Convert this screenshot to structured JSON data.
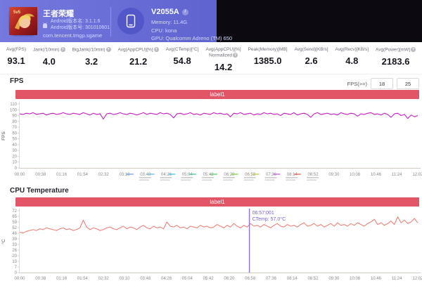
{
  "header": {
    "game": {
      "title": "王者荣耀",
      "version_name": "Android版本名: 3.1.1.6",
      "version_code": "Android版本号: 301010601",
      "package": "com.tencent.tmgp.sgame"
    },
    "device": {
      "model": "V2055A",
      "memory": "Memory: 11.4G",
      "cpu": "CPU: kona",
      "gpu": "GPU: Qualcomm Adreno (TM) 650"
    }
  },
  "stats": [
    {
      "label": "Avg(FPS)",
      "value": "93.1",
      "info": false
    },
    {
      "label": "Jank(/10min)",
      "value": "4.0",
      "info": true
    },
    {
      "label": "BigJank(/10min)",
      "value": "3.2",
      "info": true
    },
    {
      "label": "Avg(AppCPU)[%]",
      "value": "21.2",
      "info": true
    },
    {
      "label": "Avg(CTemp)[°C]",
      "value": "54.8",
      "info": false
    },
    {
      "label": "Avg(AppCPU)[%]",
      "label2": "Normalized",
      "value": "14.2",
      "info": true
    },
    {
      "label": "Peak(Memory)[MB]",
      "value": "1385.0",
      "info": false
    },
    {
      "label": "Avg(Send)[KB/s]",
      "value": "2.6",
      "info": false
    },
    {
      "label": "Avg(Recv)[KB/s]",
      "value": "4.8",
      "info": false
    },
    {
      "label": "Avg(Power)[mW]",
      "value": "2183.6",
      "info": true
    }
  ],
  "fps_section": {
    "title": "FPS",
    "filter_label": "FPS(>=)",
    "filter_values": [
      "18",
      "25"
    ],
    "banner": "label1"
  },
  "temp_section": {
    "title": "CPU Temperature",
    "banner": "label1"
  },
  "chart_data": [
    {
      "type": "line",
      "title": "FPS",
      "ylabel": "FPS",
      "ylim": [
        0,
        110
      ],
      "y_ticks": [
        110,
        100,
        90,
        80,
        70,
        60,
        50,
        40,
        30,
        20,
        10,
        0
      ],
      "x_ticks": [
        "00:00",
        "00:38",
        "01:16",
        "01:54",
        "02:32",
        "03:10",
        "03:48",
        "04:26",
        "05:04",
        "05:42",
        "06:20",
        "06:58",
        "07:36",
        "08:14",
        "08:52",
        "09:30",
        "10:08",
        "10:46",
        "11:24",
        "12:02"
      ],
      "legend_position": "below-axis",
      "legend_mark_colors": [
        "#7b9ff2",
        "#6fc3f2",
        "#4ecde3",
        "#52d3a2",
        "#5fcf7a",
        "#8fd64e",
        "#c9c94e",
        "#c76fe0",
        "#ef6a6a"
      ],
      "legend_mark_tick_start": 6,
      "series": [
        {
          "name": "label1",
          "color": "#c21fc2",
          "values": [
            93,
            92,
            94,
            93,
            95,
            92,
            93,
            94,
            91,
            93,
            94,
            92,
            93,
            95,
            93,
            92,
            94,
            93,
            92,
            95,
            93,
            91,
            94,
            92,
            93,
            84,
            93,
            94,
            92,
            93,
            95,
            93,
            92,
            94,
            93,
            91,
            93,
            95,
            92,
            94,
            93,
            92,
            95,
            93,
            94,
            92,
            86,
            93,
            94,
            92,
            93,
            95,
            92,
            93,
            91,
            94,
            93,
            92,
            95,
            93,
            94,
            92,
            93,
            88,
            94,
            93,
            95,
            92,
            93,
            94,
            91,
            93,
            92,
            95,
            93,
            94,
            92,
            93,
            90,
            94,
            93,
            92,
            95,
            91,
            93,
            94,
            92,
            87,
            93,
            95,
            92,
            93,
            94,
            92,
            93,
            91,
            95,
            93,
            92,
            94,
            93,
            89,
            93,
            92,
            94,
            95,
            92,
            93,
            91,
            94,
            92,
            87,
            93,
            94,
            90,
            92,
            85,
            91,
            88,
            90
          ]
        }
      ]
    },
    {
      "type": "line",
      "title": "CPU Temperature",
      "ylabel": "°C",
      "ylim": [
        0,
        72
      ],
      "y_ticks": [
        72,
        65,
        59,
        52,
        46,
        39,
        33,
        26,
        20,
        13,
        7,
        0
      ],
      "x_ticks": [
        "00:00",
        "00:38",
        "01:16",
        "01:54",
        "02:32",
        "03:10",
        "03:48",
        "04:26",
        "05:04",
        "05:42",
        "06:20",
        "06:58",
        "07:36",
        "08:14",
        "08:52",
        "09:30",
        "10:08",
        "10:46",
        "11:24",
        "12:02"
      ],
      "cursor": {
        "x_fraction": 0.577,
        "line1": "06:57:001",
        "line2": "CTemp: 57.0°C",
        "color": "#9070e0",
        "text_color": "#7a5ad8"
      },
      "series": [
        {
          "name": "label1",
          "color": "#e98379",
          "values": [
            47,
            46,
            48,
            49,
            50,
            49,
            51,
            50,
            52,
            51,
            50,
            49,
            51,
            52,
            50,
            51,
            49,
            50,
            52,
            61,
            53,
            50,
            52,
            51,
            49,
            50,
            52,
            53,
            51,
            50,
            52,
            54,
            51,
            53,
            52,
            50,
            53,
            55,
            52,
            51,
            54,
            52,
            53,
            51,
            59,
            54,
            53,
            55,
            52,
            53,
            51,
            54,
            53,
            52,
            55,
            53,
            54,
            52,
            53,
            56,
            54,
            52,
            55,
            53,
            57,
            54,
            52,
            55,
            53,
            57,
            54,
            55,
            53,
            56,
            54,
            52,
            55,
            57,
            54,
            53,
            56,
            54,
            55,
            53,
            56,
            58,
            54,
            55,
            57,
            54,
            56,
            53,
            55,
            57,
            54,
            58,
            55,
            56,
            54,
            57,
            55,
            58,
            56,
            54,
            57,
            59,
            62,
            56,
            58,
            55,
            57,
            60,
            56,
            65,
            58,
            61,
            57,
            59,
            63,
            58
          ]
        }
      ]
    }
  ],
  "colors": {
    "header_gradient_start": "#7579de",
    "header_gradient_end": "#5e63cf",
    "header_right": "#0c0a10",
    "banner": "#e25566",
    "fps_line": "#c21fc2",
    "temp_line": "#e98379",
    "cursor_line": "#9070e0",
    "axis_text": "#8a8a8a",
    "axis_line": "#d2cbc2"
  }
}
